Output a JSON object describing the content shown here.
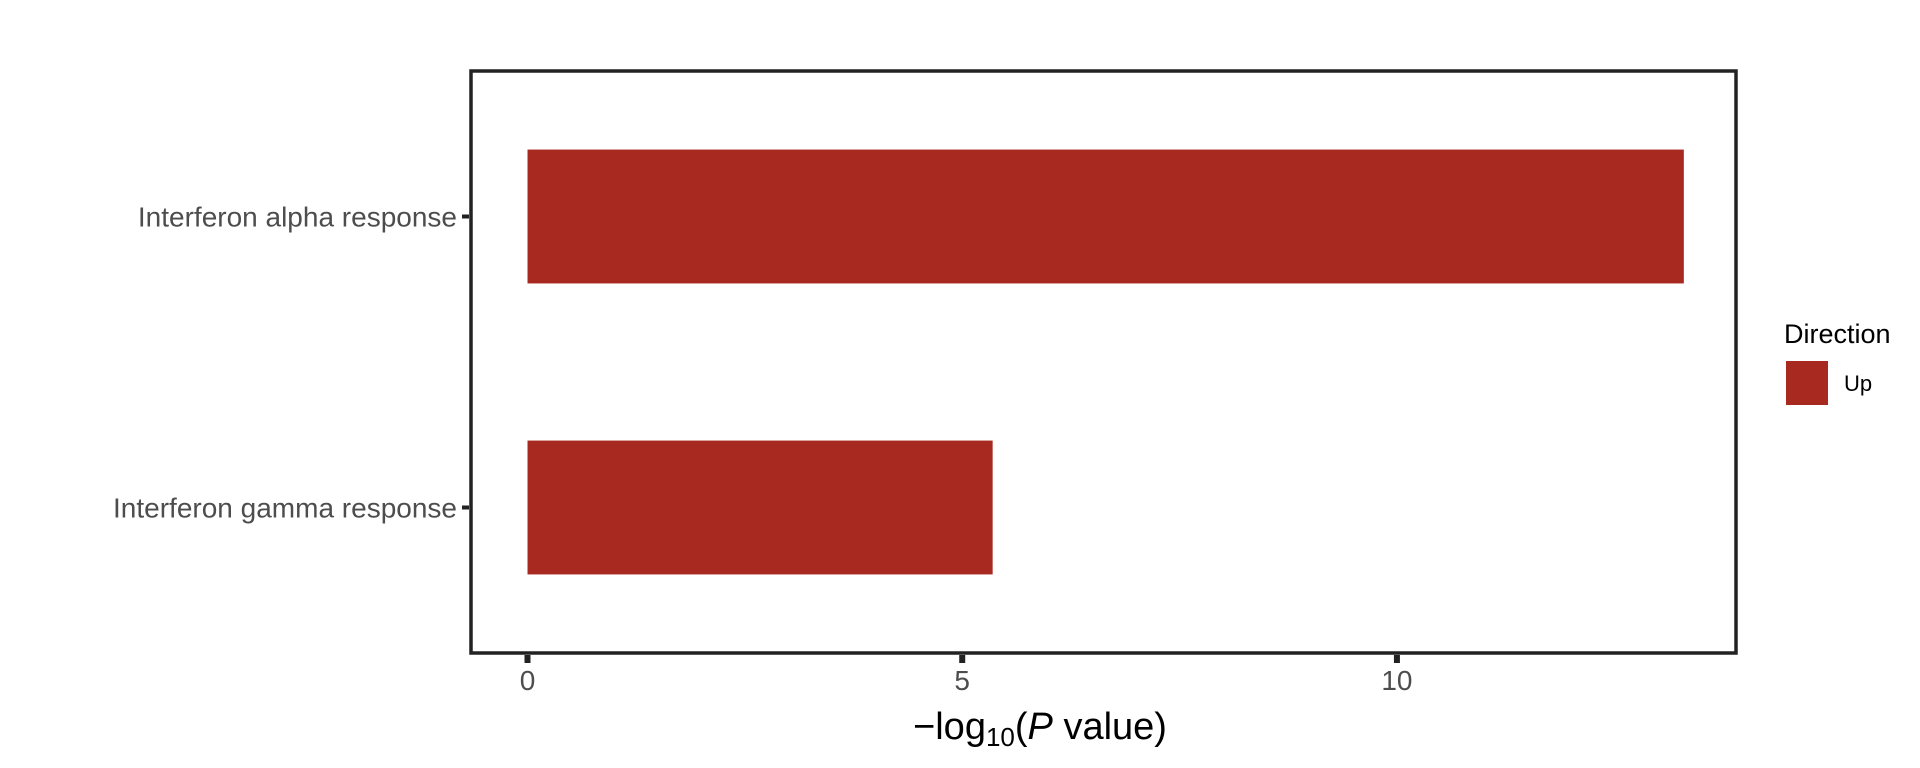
{
  "chart_data": {
    "type": "bar",
    "orientation": "horizontal",
    "categories": [
      "Interferon alpha response",
      "Interferon gamma response"
    ],
    "series": [
      {
        "name": "Up",
        "values": [
          13.3,
          5.35
        ]
      }
    ],
    "xlabel": "−log10(P value)",
    "xlabel_parts": {
      "prefix": "−log",
      "subscript": "10",
      "open": "(",
      "italic": "P",
      "rest": " value)"
    },
    "ylabel": "",
    "xlim": [
      -0.65,
      13.9
    ],
    "xticks": [
      0,
      5,
      10
    ],
    "xtick_labels": [
      "0",
      "5",
      "10"
    ],
    "grid": false,
    "legend": {
      "title": "Direction",
      "entries": [
        "Up"
      ],
      "position": "right"
    },
    "colors": {
      "Up": "#a82920",
      "frame": "#222222"
    }
  }
}
